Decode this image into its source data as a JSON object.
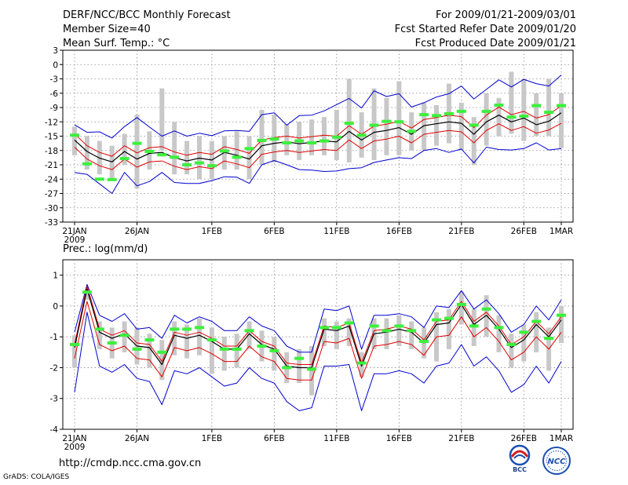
{
  "header": {
    "title": "DERF/NCC/BCC Monthly Forecast",
    "member_size": "Member Size=40",
    "variable": "Mean Surf. Temp.: °C",
    "period": "For 2009/01/21-2009/03/01",
    "refer_date": "Fcst Started Refer Date 2009/01/20",
    "produced_date": "Fcst Produced Date 2009/01/21"
  },
  "footer": {
    "url": "http://cmdp.ncc.cma.gov.cn",
    "credit": "GrADS: COLA/IGES",
    "logo_bcc": "BCC",
    "logo_ncc": "NCC"
  },
  "colors": {
    "bar": "#c8c8c8",
    "obs": "#3cf03c",
    "mean": "#000000",
    "spread": "#e00000",
    "envelope": "#0000d0",
    "grid": "#888888"
  },
  "chart_data": [
    {
      "type": "line",
      "title": "Mean Surf. Temp.: °C",
      "x_start": 1,
      "x_end": 40,
      "x_ticks": [
        {
          "x": 1,
          "label": "21JAN",
          "sub": "2009"
        },
        {
          "x": 6,
          "label": "26JAN"
        },
        {
          "x": 12,
          "label": "1FEB"
        },
        {
          "x": 17,
          "label": "6FEB"
        },
        {
          "x": 22,
          "label": "11FEB"
        },
        {
          "x": 27,
          "label": "16FEB"
        },
        {
          "x": 32,
          "label": "21FEB"
        },
        {
          "x": 37,
          "label": "26FEB"
        },
        {
          "x": 40,
          "label": "1MAR"
        }
      ],
      "ylim": [
        -33,
        3
      ],
      "y_ticks": [
        3,
        0,
        -3,
        -6,
        -9,
        -12,
        -15,
        -18,
        -21,
        -24,
        -27,
        -30,
        -33
      ],
      "series": [
        {
          "name": "ensemble mean",
          "role": "mean",
          "values": [
            -15.8,
            -18.2,
            -19.6,
            -20.4,
            -18.2,
            -19.8,
            -18.6,
            -18.4,
            -19.5,
            -20.2,
            -19.6,
            -20.0,
            -18.4,
            -19.0,
            -19.8,
            -17.0,
            -16.5,
            -16.2,
            -16.6,
            -16.3,
            -16.0,
            -16.2,
            -14.0,
            -15.8,
            -14.2,
            -13.8,
            -13.2,
            -14.6,
            -12.8,
            -12.4,
            -12.0,
            -12.3,
            -14.6,
            -12.0,
            -10.6,
            -12.0,
            -11.2,
            -12.6,
            -11.9,
            -10.1
          ]
        },
        {
          "name": "upper spread",
          "role": "spread",
          "values": [
            -14.5,
            -17.0,
            -18.4,
            -19.2,
            -17.0,
            -18.5,
            -17.4,
            -17.2,
            -18.3,
            -19.0,
            -18.4,
            -18.8,
            -17.2,
            -17.8,
            -18.6,
            -15.8,
            -15.3,
            -15.0,
            -15.4,
            -15.1,
            -14.8,
            -15.0,
            -12.8,
            -14.6,
            -12.9,
            -12.5,
            -11.9,
            -13.3,
            -11.5,
            -11.1,
            -10.6,
            -10.9,
            -13.2,
            -10.6,
            -8.9,
            -10.5,
            -9.8,
            -11.2,
            -10.5,
            -8.6
          ]
        },
        {
          "name": "lower spread",
          "role": "spread",
          "values": [
            -17.3,
            -19.8,
            -21.2,
            -22.0,
            -19.8,
            -21.5,
            -20.4,
            -20.2,
            -21.3,
            -22.0,
            -21.4,
            -21.8,
            -20.2,
            -20.8,
            -21.6,
            -18.8,
            -18.3,
            -18.0,
            -18.4,
            -18.1,
            -17.8,
            -18.0,
            -15.8,
            -17.6,
            -16.0,
            -15.6,
            -15.0,
            -16.4,
            -14.6,
            -14.2,
            -13.8,
            -14.1,
            -16.4,
            -13.8,
            -12.4,
            -13.8,
            -13.0,
            -14.4,
            -13.7,
            -12.3
          ]
        },
        {
          "name": "max member",
          "role": "envelope",
          "values": [
            -12.6,
            -14.2,
            -14.1,
            -15.4,
            -13.0,
            -11.1,
            -13.1,
            -15.0,
            -13.9,
            -15.0,
            -14.4,
            -14.9,
            -13.9,
            -13.8,
            -14.0,
            -10.5,
            -10.1,
            -12.7,
            -10.7,
            -10.6,
            -9.7,
            -8.4,
            -7.1,
            -9.1,
            -5.5,
            -6.7,
            -6.1,
            -8.9,
            -8.0,
            -6.8,
            -6.1,
            -4.5,
            -7.2,
            -5.2,
            -3.2,
            -4.7,
            -3.1,
            -4.0,
            -4.5,
            -2.2
          ]
        },
        {
          "name": "min member",
          "role": "envelope",
          "values": [
            -22.6,
            -23.0,
            -25.0,
            -27.0,
            -22.6,
            -25.4,
            -24.5,
            -22.6,
            -24.7,
            -24.9,
            -24.9,
            -24.3,
            -23.5,
            -23.6,
            -24.9,
            -21.0,
            -20.1,
            -21.0,
            -22.0,
            -22.1,
            -22.4,
            -22.3,
            -21.8,
            -21.6,
            -20.5,
            -20.0,
            -19.5,
            -19.7,
            -18.0,
            -17.6,
            -18.4,
            -17.7,
            -20.6,
            -17.3,
            -17.8,
            -17.9,
            -17.6,
            -16.4,
            -17.9,
            -17.6
          ]
        },
        {
          "name": "bar top",
          "role": "bar_high",
          "values": [
            -13.0,
            -15.0,
            -16.0,
            -17.0,
            -14.5,
            -10.5,
            -14.0,
            -5.0,
            -12.0,
            -16.0,
            -15.0,
            -16.0,
            -15.0,
            -14.0,
            -15.0,
            -9.5,
            -10.5,
            -12.5,
            -12.0,
            -11.5,
            -11.0,
            -9.5,
            -3.0,
            -10.0,
            -5.0,
            -7.0,
            -3.5,
            -10.0,
            -8.0,
            -8.5,
            -4.0,
            -8.0,
            -11.0,
            -6.0,
            -7.0,
            -1.5,
            -3.0,
            -6.0,
            -3.0,
            -6.0
          ]
        },
        {
          "name": "bar bottom",
          "role": "bar_low",
          "values": [
            -19.0,
            -22.0,
            -23.0,
            -24.0,
            -21.0,
            -26.0,
            -22.0,
            -18.0,
            -23.0,
            -23.0,
            -24.0,
            -24.0,
            -22.0,
            -22.0,
            -24.0,
            -21.0,
            -20.5,
            -19.0,
            -20.0,
            -19.0,
            -19.0,
            -20.0,
            -20.5,
            -19.5,
            -20.0,
            -19.0,
            -19.0,
            -18.0,
            -18.0,
            -17.0,
            -16.5,
            -18.0,
            -21.0,
            -17.0,
            -15.0,
            -14.5,
            -16.0,
            -15.0,
            -15.0,
            -17.5
          ]
        },
        {
          "name": "observed",
          "role": "obs",
          "values": [
            -14.8,
            -20.8,
            -24.0,
            -24.1,
            -19.7,
            -16.5,
            -18.2,
            -18.9,
            -19.4,
            -21.0,
            -20.6,
            -21.2,
            -18.1,
            -19.4,
            -17.6,
            -15.9,
            -15.6,
            -16.4,
            -16.0,
            -16.4,
            -16.0,
            -15.2,
            -12.3,
            -14.8,
            -12.7,
            -11.9,
            -12.0,
            -14.0,
            -10.5,
            -10.7,
            -10.3,
            -9.8,
            -12.7,
            -9.8,
            -8.5,
            -11.0,
            -10.8,
            -8.6,
            -10.0,
            -8.6
          ]
        }
      ]
    },
    {
      "type": "line",
      "title": "Prec.: log(mm/d)",
      "x_start": 1,
      "x_end": 40,
      "x_ticks": [
        {
          "x": 1,
          "label": "21JAN",
          "sub": "2009"
        },
        {
          "x": 6,
          "label": "26JAN"
        },
        {
          "x": 12,
          "label": "1FEB"
        },
        {
          "x": 17,
          "label": "6FEB"
        },
        {
          "x": 22,
          "label": "11FEB"
        },
        {
          "x": 27,
          "label": "16FEB"
        },
        {
          "x": 32,
          "label": "21FEB"
        },
        {
          "x": 37,
          "label": "26FEB"
        },
        {
          "x": 40,
          "label": "1MAR"
        }
      ],
      "ylim": [
        -4,
        1.5
      ],
      "y_ticks": [
        1,
        0,
        -1,
        -2,
        -3,
        -4
      ],
      "series": [
        {
          "name": "ensemble mean",
          "role": "mean",
          "values": [
            -1.35,
            0.55,
            -0.85,
            -1.05,
            -0.9,
            -1.3,
            -1.35,
            -1.9,
            -0.95,
            -1.05,
            -0.95,
            -1.15,
            -1.4,
            -1.4,
            -0.9,
            -1.25,
            -1.4,
            -1.95,
            -2.0,
            -2.0,
            -0.75,
            -0.8,
            -0.65,
            -1.95,
            -0.9,
            -0.85,
            -0.75,
            -0.85,
            -1.2,
            -0.6,
            -0.55,
            0.05,
            -0.6,
            -0.3,
            -0.75,
            -1.35,
            -1.1,
            -0.6,
            -1.0,
            -0.45
          ]
        },
        {
          "name": "upper spread",
          "role": "spread",
          "values": [
            -1.25,
            0.65,
            -0.75,
            -0.95,
            -0.8,
            -1.2,
            -1.25,
            -1.8,
            -0.85,
            -0.95,
            -0.85,
            -1.05,
            -1.3,
            -1.3,
            -0.8,
            -1.15,
            -1.3,
            -1.85,
            -1.9,
            -1.9,
            -0.65,
            -0.7,
            -0.55,
            -1.85,
            -0.8,
            -0.75,
            -0.65,
            -0.75,
            -1.1,
            -0.5,
            -0.45,
            0.15,
            -0.5,
            -0.2,
            -0.65,
            -1.25,
            -1.0,
            -0.5,
            -0.9,
            -0.35
          ]
        },
        {
          "name": "lower spread",
          "role": "spread",
          "values": [
            -1.7,
            0.15,
            -1.25,
            -1.45,
            -1.3,
            -1.7,
            -1.75,
            -2.3,
            -1.35,
            -1.45,
            -1.35,
            -1.55,
            -1.8,
            -1.8,
            -1.3,
            -1.65,
            -1.8,
            -2.35,
            -2.4,
            -2.4,
            -1.15,
            -1.2,
            -1.05,
            -2.35,
            -1.3,
            -1.25,
            -1.15,
            -1.25,
            -1.6,
            -1.0,
            -0.95,
            -0.35,
            -1.0,
            -0.7,
            -1.15,
            -1.75,
            -1.5,
            -1.0,
            -1.4,
            -0.85
          ]
        },
        {
          "name": "max member",
          "role": "envelope",
          "values": [
            -0.85,
            0.7,
            -0.3,
            -0.5,
            -0.25,
            -0.75,
            -0.7,
            -1.05,
            -0.3,
            -0.55,
            -0.35,
            -0.5,
            -0.8,
            -0.8,
            -0.35,
            -0.65,
            -0.8,
            -1.3,
            -1.5,
            -1.5,
            -0.1,
            -0.15,
            0.0,
            -1.4,
            -0.3,
            -0.3,
            -0.25,
            -0.35,
            -0.7,
            0.0,
            -0.05,
            0.5,
            -0.1,
            0.2,
            -0.25,
            -0.85,
            -0.6,
            0.0,
            -0.45,
            0.2
          ]
        },
        {
          "name": "min member",
          "role": "envelope",
          "values": [
            -2.8,
            -0.2,
            -1.95,
            -2.15,
            -1.9,
            -2.35,
            -2.45,
            -3.2,
            -2.1,
            -2.2,
            -2.0,
            -2.3,
            -2.6,
            -2.5,
            -2.0,
            -2.35,
            -2.5,
            -3.1,
            -3.4,
            -3.3,
            -1.95,
            -1.95,
            -1.9,
            -3.4,
            -2.2,
            -2.2,
            -2.1,
            -2.2,
            -2.5,
            -1.95,
            -1.85,
            -1.25,
            -1.95,
            -1.65,
            -2.1,
            -2.8,
            -2.55,
            -1.95,
            -2.5,
            -1.8
          ]
        },
        {
          "name": "bar top",
          "role": "bar_high",
          "values": [
            -0.95,
            0.4,
            -0.5,
            -0.7,
            -0.5,
            -0.7,
            -0.9,
            -1.1,
            -0.5,
            -0.6,
            -0.4,
            -0.7,
            -1.0,
            -0.9,
            -0.5,
            -0.8,
            -1.0,
            -1.5,
            -1.4,
            -1.3,
            -0.4,
            -0.5,
            -0.4,
            -1.5,
            -0.4,
            -0.4,
            -0.3,
            -0.5,
            -0.7,
            -0.2,
            -0.1,
            0.45,
            -0.1,
            0.35,
            -0.3,
            -0.9,
            -0.6,
            -0.2,
            -0.7,
            0.0
          ]
        },
        {
          "name": "bar bottom",
          "role": "bar_low",
          "values": [
            -2.0,
            0.2,
            -1.4,
            -1.7,
            -1.5,
            -1.9,
            -2.0,
            -2.4,
            -1.6,
            -1.7,
            -1.6,
            -2.2,
            -2.1,
            -2.0,
            -1.4,
            -1.8,
            -2.1,
            -2.5,
            -2.5,
            -2.9,
            -1.3,
            -1.4,
            -1.3,
            -2.3,
            -1.4,
            -1.4,
            -1.3,
            -1.4,
            -1.7,
            -1.8,
            -1.4,
            -0.6,
            -1.3,
            -1.0,
            -1.5,
            -2.0,
            -1.8,
            -1.5,
            -2.1,
            -1.2
          ]
        },
        {
          "name": "observed",
          "role": "obs",
          "values": [
            -1.25,
            0.45,
            -0.75,
            -1.2,
            -0.95,
            -1.4,
            -1.1,
            -1.5,
            -0.75,
            -0.75,
            -0.7,
            -1.1,
            -1.4,
            -1.4,
            -0.8,
            -1.3,
            -1.45,
            -2.0,
            -1.7,
            -2.05,
            -0.7,
            -0.7,
            -0.55,
            -1.85,
            -0.65,
            -0.8,
            -0.65,
            -0.8,
            -1.15,
            -0.45,
            -0.4,
            0.05,
            -0.65,
            -0.1,
            -0.7,
            -1.25,
            -0.85,
            -0.5,
            -1.05,
            -0.3
          ]
        }
      ]
    }
  ]
}
